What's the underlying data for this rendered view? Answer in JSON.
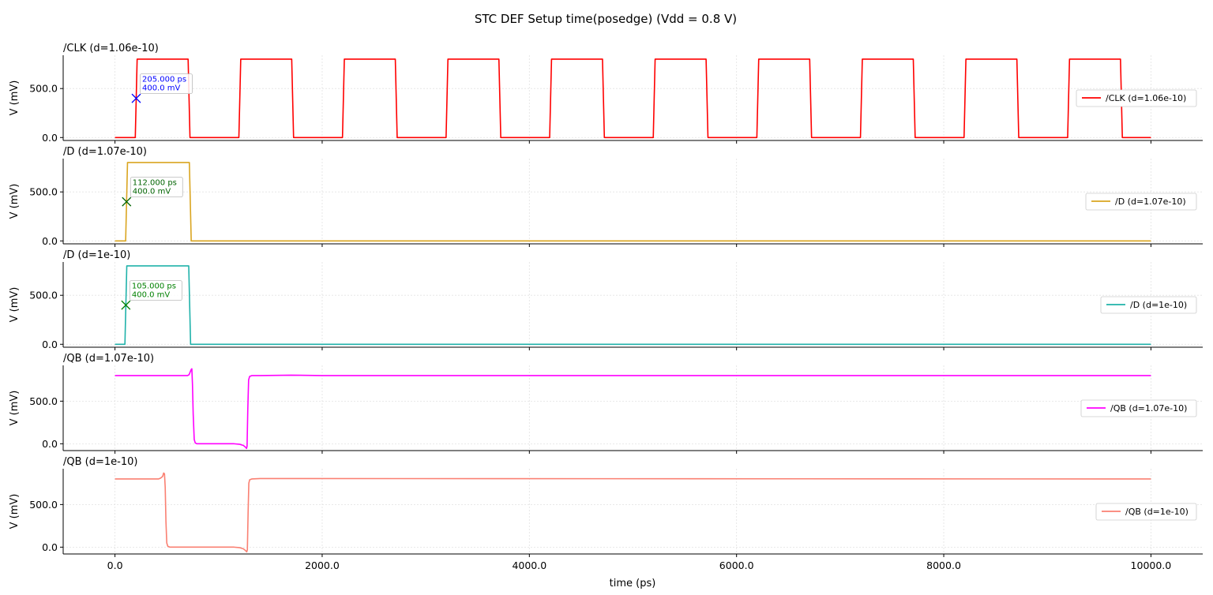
{
  "chart_data": {
    "type": "line",
    "title": "STC DEF Setup time(posedge) (Vdd = 0.8 V)",
    "xlabel": "time (ps)",
    "ylabel": "V (mV)",
    "xlim": [
      -500,
      10500
    ],
    "x_ticks": [
      0,
      2000,
      4000,
      6000,
      8000,
      10000
    ],
    "x_tick_labels": [
      "0.0",
      "2000.0",
      "4000.0",
      "6000.0",
      "8000.0",
      "10000.0"
    ],
    "y_ticks": [
      0,
      500
    ],
    "y_tick_labels": [
      "0.0",
      "500.0"
    ],
    "grid": true,
    "legend_position": "right",
    "panels": [
      {
        "title": "/CLK (d=1.06e-10)",
        "series_name": "/CLK (d=1.06e-10)",
        "color": "#ff0000",
        "ylim": [
          -30,
          840
        ],
        "x": [
          0,
          196,
          214,
          706,
          724,
          1196,
          1214,
          1706,
          1724,
          2196,
          2214,
          2706,
          2724,
          3196,
          3214,
          3706,
          3724,
          4196,
          4214,
          4706,
          4724,
          5196,
          5214,
          5706,
          5724,
          6196,
          6214,
          6706,
          6724,
          7196,
          7214,
          7706,
          7724,
          8196,
          8214,
          8706,
          8724,
          9196,
          9214,
          9706,
          9724,
          10000
        ],
        "y": [
          0,
          0,
          800,
          800,
          0,
          0,
          800,
          800,
          0,
          0,
          800,
          800,
          0,
          0,
          800,
          800,
          0,
          0,
          800,
          800,
          0,
          0,
          800,
          800,
          0,
          0,
          800,
          800,
          0,
          0,
          800,
          800,
          0,
          0,
          800,
          800,
          0,
          0,
          800,
          800,
          0,
          0
        ],
        "marker": {
          "x": 205,
          "y": 400,
          "color": "#0000ff",
          "text": [
            "205.000 ps",
            "400.0 mV"
          ]
        }
      },
      {
        "title": "/D (d=1.07e-10)",
        "series_name": "/D (d=1.07e-10)",
        "color": "#daa520",
        "ylim": [
          -30,
          840
        ],
        "x": [
          0,
          103,
          121,
          718,
          736,
          10000
        ],
        "y": [
          0,
          0,
          800,
          800,
          0,
          0
        ],
        "marker": {
          "x": 112,
          "y": 400,
          "color": "#006400",
          "text": [
            "112.000 ps",
            "400.0 mV"
          ]
        }
      },
      {
        "title": "/D (d=1e-10)",
        "series_name": "/D (d=1e-10)",
        "color": "#20b2aa",
        "ylim": [
          -30,
          840
        ],
        "x": [
          0,
          96,
          114,
          712,
          730,
          10000
        ],
        "y": [
          0,
          0,
          800,
          800,
          0,
          0
        ],
        "marker": {
          "x": 105,
          "y": 400,
          "color": "#008000",
          "text": [
            "105.000 ps",
            "400.0 mV"
          ]
        }
      },
      {
        "title": "/QB (d=1.07e-10)",
        "series_name": "/QB (d=1.07e-10)",
        "color": "#ff00ff",
        "ylim": [
          -80,
          920
        ],
        "x": [
          0,
          700,
          715,
          725,
          735,
          742,
          748,
          755,
          765,
          775,
          790,
          820,
          1000,
          1150,
          1200,
          1240,
          1260,
          1270,
          1275,
          1282,
          1290,
          1300,
          1320,
          1400,
          1700,
          2000,
          10000
        ],
        "y": [
          800,
          800,
          810,
          840,
          870,
          880,
          700,
          350,
          50,
          10,
          0,
          0,
          0,
          0,
          -5,
          -20,
          -40,
          -55,
          -30,
          400,
          750,
          790,
          800,
          800,
          805,
          800,
          800
        ]
      },
      {
        "title": "/QB (d=1e-10)",
        "series_name": "/QB (d=1e-10)",
        "color": "#fa8072",
        "ylim": [
          -80,
          920
        ],
        "x": [
          0,
          390,
          420,
          440,
          460,
          470,
          478,
          485,
          492,
          500,
          510,
          530,
          560,
          1000,
          1150,
          1200,
          1240,
          1260,
          1272,
          1278,
          1285,
          1292,
          1300,
          1320,
          1400,
          10000
        ],
        "y": [
          800,
          800,
          800,
          810,
          830,
          870,
          860,
          700,
          300,
          50,
          10,
          0,
          0,
          0,
          0,
          -5,
          -20,
          -40,
          -55,
          -30,
          400,
          750,
          790,
          800,
          805,
          800
        ]
      }
    ]
  }
}
